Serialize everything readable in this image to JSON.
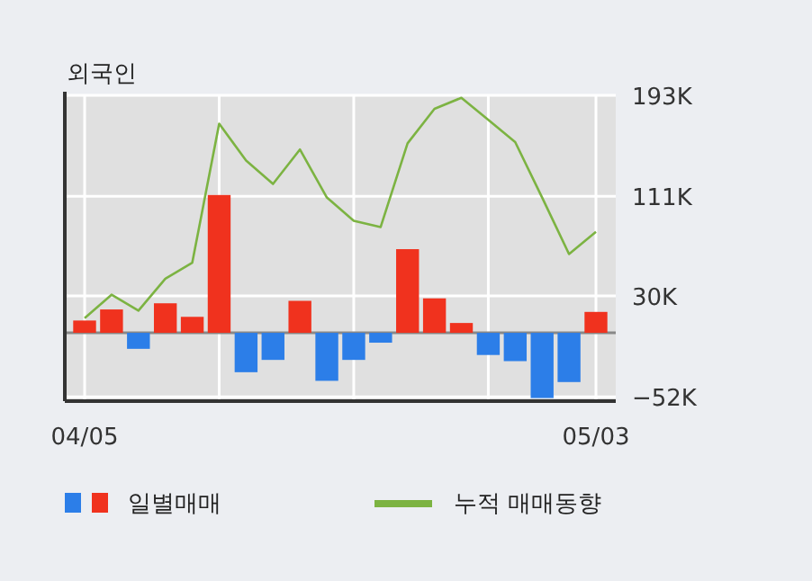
{
  "chart_data": {
    "type": "bar",
    "title": "외국인",
    "categories": [
      "04/05",
      null,
      null,
      null,
      null,
      null,
      null,
      null,
      null,
      null,
      null,
      null,
      null,
      null,
      null,
      null,
      null,
      null,
      null,
      "05/03"
    ],
    "series": [
      {
        "name": "일별매매",
        "colors": [
          "#f0321e",
          "#f0321e",
          "#2c7ee8",
          "#f0321e",
          "#f0321e",
          "#f0321e",
          "#2c7ee8",
          "#2c7ee8",
          "#f0321e",
          "#2c7ee8",
          "#2c7ee8",
          "#2c7ee8",
          "#f0321e",
          "#f0321e",
          "#f0321e",
          "#2c7ee8",
          "#2c7ee8",
          "#2c7ee8",
          "#2c7ee8",
          "#f0321e"
        ],
        "values": [
          10,
          19,
          -13,
          24,
          13,
          112,
          -32,
          -22,
          26,
          -39,
          -22,
          -8,
          68,
          28,
          8,
          -18,
          -23,
          -53,
          -40,
          17
        ]
      },
      {
        "name": "누적 매매동향",
        "type": "line",
        "color": "#7cb342",
        "values": [
          12,
          31,
          18,
          44,
          57,
          170,
          140,
          121,
          149,
          110,
          91,
          86,
          154,
          182,
          191,
          173,
          155,
          110,
          64,
          82
        ]
      }
    ],
    "ylim": [
      -55.5,
      193
    ],
    "yticks": [
      {
        "value": 193,
        "label": "193K"
      },
      {
        "value": 111,
        "label": "111K"
      },
      {
        "value": 30,
        "label": "30K"
      },
      {
        "value": -52,
        "label": "−52K"
      }
    ],
    "grid": true,
    "legend": "bottom"
  }
}
